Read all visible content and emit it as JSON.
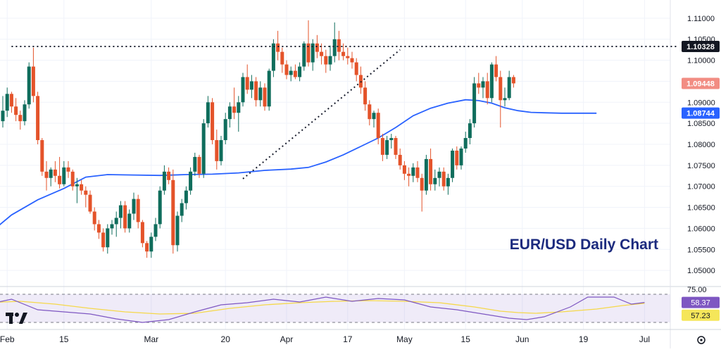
{
  "chart_data": {
    "type": "candlestick",
    "title": "EUR/USD Daily Chart",
    "price_axis": {
      "ticks": [
        "1.11000",
        "1.10500",
        "1.10000",
        "1.09500",
        "1.09000",
        "1.08500",
        "1.08000",
        "1.07500",
        "1.07000",
        "1.06500",
        "1.06000",
        "1.05500",
        "1.05000"
      ],
      "tick_values": [
        1.11,
        1.105,
        1.1,
        1.095,
        1.09,
        1.085,
        1.08,
        1.075,
        1.07,
        1.065,
        1.06,
        1.055,
        1.05
      ],
      "ylim": [
        1.0465,
        1.1135
      ]
    },
    "x_axis": {
      "ticks": [
        "Feb",
        "15",
        "Mar",
        "20",
        "Apr",
        "17",
        "May",
        "15",
        "Jun",
        "19",
        "Jul"
      ],
      "tick_index": [
        1,
        14,
        34,
        51,
        65,
        79,
        92,
        106,
        119,
        133,
        147
      ]
    },
    "badges": [
      {
        "label": "1.10328",
        "value": 1.10328,
        "style": "level"
      },
      {
        "label": "1.09448",
        "value": 1.09448,
        "style": "price"
      },
      {
        "label": "1.08744",
        "value": 1.08744,
        "style": "ma"
      }
    ],
    "horizontal_level": {
      "value": 1.10328,
      "from_index": 2,
      "style": "dotted"
    },
    "trendline": {
      "from": {
        "index": 55,
        "value": 1.0718
      },
      "to": {
        "index": 91,
        "value": 1.1025
      },
      "style": "dotted"
    },
    "moving_average": {
      "points": [
        [
          -4,
          1.058
        ],
        [
          2,
          1.0632
        ],
        [
          8,
          1.0668
        ],
        [
          14,
          1.0695
        ],
        [
          19,
          1.0722
        ],
        [
          24,
          1.0728
        ],
        [
          30,
          1.0727
        ],
        [
          36,
          1.0726
        ],
        [
          42,
          1.0728
        ],
        [
          48,
          1.0729
        ],
        [
          54,
          1.0732
        ],
        [
          60,
          1.0738
        ],
        [
          66,
          1.0741
        ],
        [
          70,
          1.0745
        ],
        [
          74,
          1.0758
        ],
        [
          78,
          1.0775
        ],
        [
          82,
          1.0795
        ],
        [
          86,
          1.0815
        ],
        [
          90,
          1.084
        ],
        [
          94,
          1.0868
        ],
        [
          98,
          1.0886
        ],
        [
          102,
          1.0898
        ],
        [
          106,
          1.0906
        ],
        [
          109,
          1.0904
        ],
        [
          112,
          1.0898
        ],
        [
          115,
          1.0887
        ],
        [
          118,
          1.088
        ],
        [
          121,
          1.0876
        ],
        [
          124,
          1.0875
        ],
        [
          128,
          1.0874
        ],
        [
          136,
          1.0874
        ]
      ]
    },
    "candles": [
      [
        1.0855,
        1.0915,
        1.084,
        1.088
      ],
      [
        1.088,
        1.0935,
        1.0865,
        1.092
      ],
      [
        1.092,
        1.0925,
        1.0875,
        1.089
      ],
      [
        1.089,
        1.091,
        1.0855,
        1.087
      ],
      [
        1.087,
        1.088,
        1.0835,
        1.0855
      ],
      [
        1.0855,
        1.0905,
        1.0845,
        1.0895
      ],
      [
        1.0895,
        1.0995,
        1.0885,
        1.0985
      ],
      [
        1.0985,
        1.103,
        1.09,
        1.0915
      ],
      [
        1.0915,
        1.0925,
        1.08,
        1.081
      ],
      [
        1.081,
        1.0815,
        1.0725,
        1.0735
      ],
      [
        1.0735,
        1.076,
        1.069,
        1.072
      ],
      [
        1.072,
        1.0745,
        1.07,
        1.074
      ],
      [
        1.074,
        1.076,
        1.071,
        1.0725
      ],
      [
        1.0725,
        1.077,
        1.0695,
        1.0705
      ],
      [
        1.0705,
        1.076,
        1.07,
        1.0745
      ],
      [
        1.0745,
        1.076,
        1.072,
        1.0735
      ],
      [
        1.0735,
        1.074,
        1.069,
        1.07
      ],
      [
        1.07,
        1.072,
        1.066,
        1.0705
      ],
      [
        1.0705,
        1.0715,
        1.068,
        1.069
      ],
      [
        1.069,
        1.07,
        1.065,
        1.068
      ],
      [
        1.068,
        1.069,
        1.0635,
        1.064
      ],
      [
        1.064,
        1.065,
        1.0595,
        1.061
      ],
      [
        1.061,
        1.062,
        1.0575,
        1.059
      ],
      [
        1.059,
        1.06,
        1.0545,
        1.0555
      ],
      [
        1.0555,
        1.061,
        1.054,
        1.06
      ],
      [
        1.06,
        1.062,
        1.0585,
        1.061
      ],
      [
        1.061,
        1.064,
        1.058,
        1.0625
      ],
      [
        1.0625,
        1.0665,
        1.06,
        1.0655
      ],
      [
        1.0655,
        1.0665,
        1.059,
        1.06
      ],
      [
        1.06,
        1.0645,
        1.059,
        1.0635
      ],
      [
        1.0635,
        1.0685,
        1.062,
        1.067
      ],
      [
        1.067,
        1.068,
        1.06,
        1.0615
      ],
      [
        1.0615,
        1.062,
        1.0555,
        1.0565
      ],
      [
        1.0565,
        1.057,
        1.053,
        1.0545
      ],
      [
        1.0545,
        1.059,
        1.053,
        1.058
      ],
      [
        1.058,
        1.0625,
        1.057,
        1.061
      ],
      [
        1.061,
        1.07,
        1.06,
        1.069
      ],
      [
        1.069,
        1.075,
        1.068,
        1.0735
      ],
      [
        1.0735,
        1.0745,
        1.0705,
        1.0715
      ],
      [
        1.0715,
        1.074,
        1.054,
        1.056
      ],
      [
        1.056,
        1.064,
        1.0545,
        1.063
      ],
      [
        1.063,
        1.067,
        1.0615,
        1.066
      ],
      [
        1.066,
        1.07,
        1.0645,
        1.069
      ],
      [
        1.069,
        1.0745,
        1.068,
        1.0735
      ],
      [
        1.0735,
        1.078,
        1.0725,
        1.077
      ],
      [
        1.077,
        1.0775,
        1.072,
        1.073
      ],
      [
        1.073,
        1.086,
        1.072,
        1.085
      ],
      [
        1.085,
        1.0915,
        1.084,
        1.09
      ],
      [
        1.09,
        1.091,
        1.08,
        1.081
      ],
      [
        1.081,
        1.0835,
        1.074,
        1.076
      ],
      [
        1.076,
        1.082,
        1.075,
        1.081
      ],
      [
        1.081,
        1.0875,
        1.08,
        1.086
      ],
      [
        1.086,
        1.09,
        1.084,
        1.089
      ],
      [
        1.089,
        1.0935,
        1.086,
        1.0875
      ],
      [
        1.0875,
        1.0915,
        1.083,
        1.09
      ],
      [
        1.09,
        1.097,
        1.089,
        1.096
      ],
      [
        1.096,
        1.099,
        1.092,
        1.093
      ],
      [
        1.093,
        1.0965,
        1.091,
        1.095
      ],
      [
        1.095,
        1.096,
        1.089,
        1.0905
      ],
      [
        1.0905,
        1.095,
        1.089,
        1.0935
      ],
      [
        1.0935,
        1.0945,
        1.088,
        1.089
      ],
      [
        1.089,
        1.098,
        1.088,
        1.0975
      ],
      [
        1.0975,
        1.105,
        1.096,
        1.104
      ],
      [
        1.104,
        1.107,
        1.1,
        1.102
      ],
      [
        1.102,
        1.103,
        1.097,
        1.099
      ],
      [
        1.099,
        1.1,
        1.0955,
        1.0965
      ],
      [
        1.0965,
        1.0985,
        1.095,
        1.0975
      ],
      [
        1.0975,
        1.099,
        1.0955,
        1.096
      ],
      [
        1.096,
        1.0995,
        1.095,
        1.0985
      ],
      [
        1.0985,
        1.1045,
        1.0975,
        1.104
      ],
      [
        1.104,
        1.1095,
        1.0985,
        1.0995
      ],
      [
        1.0995,
        1.105,
        1.0975,
        1.104
      ],
      [
        1.104,
        1.106,
        1.1005,
        1.102
      ],
      [
        1.102,
        1.104,
        1.099,
        1.101
      ],
      [
        1.101,
        1.1025,
        1.097,
        1.099
      ],
      [
        1.099,
        1.1035,
        1.0975,
        1.101
      ],
      [
        1.101,
        1.109,
        1.0995,
        1.105
      ],
      [
        1.105,
        1.107,
        1.1,
        1.102
      ],
      [
        1.102,
        1.104,
        1.1,
        1.101
      ],
      [
        1.101,
        1.103,
        1.099,
        1.1005
      ],
      [
        1.1005,
        1.102,
        1.098,
        1.0995
      ],
      [
        1.0995,
        1.1005,
        1.095,
        1.0965
      ],
      [
        1.0965,
        1.0985,
        1.092,
        1.0935
      ],
      [
        1.0935,
        1.095,
        1.088,
        1.0895
      ],
      [
        1.0895,
        1.0905,
        1.0845,
        1.086
      ],
      [
        1.086,
        1.088,
        1.084,
        1.0875
      ],
      [
        1.0875,
        1.0885,
        1.08,
        1.0815
      ],
      [
        1.0815,
        1.0825,
        1.076,
        1.0775
      ],
      [
        1.0775,
        1.082,
        1.0765,
        1.081
      ],
      [
        1.081,
        1.0825,
        1.079,
        1.0815
      ],
      [
        1.0815,
        1.082,
        1.0765,
        1.0775
      ],
      [
        1.0775,
        1.079,
        1.074,
        1.075
      ],
      [
        1.075,
        1.076,
        1.0715,
        1.073
      ],
      [
        1.073,
        1.0745,
        1.07,
        1.0725
      ],
      [
        1.0725,
        1.0755,
        1.071,
        1.0745
      ],
      [
        1.0745,
        1.076,
        1.071,
        1.072
      ],
      [
        1.072,
        1.073,
        1.064,
        1.069
      ],
      [
        1.069,
        1.0775,
        1.068,
        1.0765
      ],
      [
        1.0765,
        1.079,
        1.069,
        1.0705
      ],
      [
        1.0705,
        1.074,
        1.069,
        1.072
      ],
      [
        1.072,
        1.0745,
        1.07,
        1.0735
      ],
      [
        1.0735,
        1.0745,
        1.069,
        1.07
      ],
      [
        1.07,
        1.073,
        1.068,
        1.072
      ],
      [
        1.072,
        1.079,
        1.071,
        1.0785
      ],
      [
        1.0785,
        1.0795,
        1.074,
        1.075
      ],
      [
        1.075,
        1.0795,
        1.074,
        1.079
      ],
      [
        1.079,
        1.083,
        1.078,
        1.0815
      ],
      [
        1.0815,
        1.086,
        1.08,
        1.085
      ],
      [
        1.085,
        1.096,
        1.084,
        1.0945
      ],
      [
        1.0945,
        1.097,
        1.092,
        1.0935
      ],
      [
        1.0935,
        1.096,
        1.091,
        1.095
      ],
      [
        1.095,
        1.097,
        1.0895,
        1.091
      ],
      [
        1.091,
        1.0995,
        1.09,
        1.099
      ],
      [
        1.099,
        1.101,
        1.095,
        1.096
      ],
      [
        1.096,
        1.0975,
        1.084,
        1.0905
      ],
      [
        1.0905,
        1.0935,
        1.089,
        1.091
      ],
      [
        1.091,
        1.0975,
        1.0905,
        1.096
      ],
      [
        1.096,
        1.0965,
        1.0935,
        1.0945
      ]
    ],
    "rsi": {
      "ticks": [
        "75.00"
      ],
      "levels": [
        70,
        30
      ],
      "range": [
        20,
        80
      ],
      "rsi_label": "58.37",
      "rsi_value": 58.37,
      "signal_label": "57.23",
      "signal_value": 57.23,
      "rsi_points": [
        [
          -4,
          55
        ],
        [
          2,
          63
        ],
        [
          8,
          48
        ],
        [
          14,
          45
        ],
        [
          20,
          42
        ],
        [
          26,
          35
        ],
        [
          32,
          30
        ],
        [
          38,
          34
        ],
        [
          44,
          45
        ],
        [
          50,
          55
        ],
        [
          56,
          58
        ],
        [
          62,
          63
        ],
        [
          68,
          59
        ],
        [
          74,
          66
        ],
        [
          80,
          60
        ],
        [
          86,
          64
        ],
        [
          92,
          62
        ],
        [
          98,
          52
        ],
        [
          104,
          48
        ],
        [
          110,
          42
        ],
        [
          116,
          36
        ],
        [
          120,
          34
        ],
        [
          124,
          38
        ],
        [
          130,
          52
        ],
        [
          134,
          66
        ],
        [
          140,
          66
        ],
        [
          144,
          56
        ],
        [
          147,
          58.37
        ]
      ],
      "signal_points": [
        [
          -4,
          58
        ],
        [
          4,
          60
        ],
        [
          12,
          56
        ],
        [
          20,
          50
        ],
        [
          28,
          45
        ],
        [
          36,
          42
        ],
        [
          44,
          43
        ],
        [
          52,
          50
        ],
        [
          60,
          55
        ],
        [
          68,
          58
        ],
        [
          76,
          60
        ],
        [
          84,
          61
        ],
        [
          92,
          60
        ],
        [
          100,
          58
        ],
        [
          108,
          52
        ],
        [
          114,
          46
        ],
        [
          118,
          44
        ],
        [
          122,
          43
        ],
        [
          128,
          45
        ],
        [
          136,
          49
        ],
        [
          142,
          54
        ],
        [
          147,
          57.23
        ]
      ]
    }
  }
}
